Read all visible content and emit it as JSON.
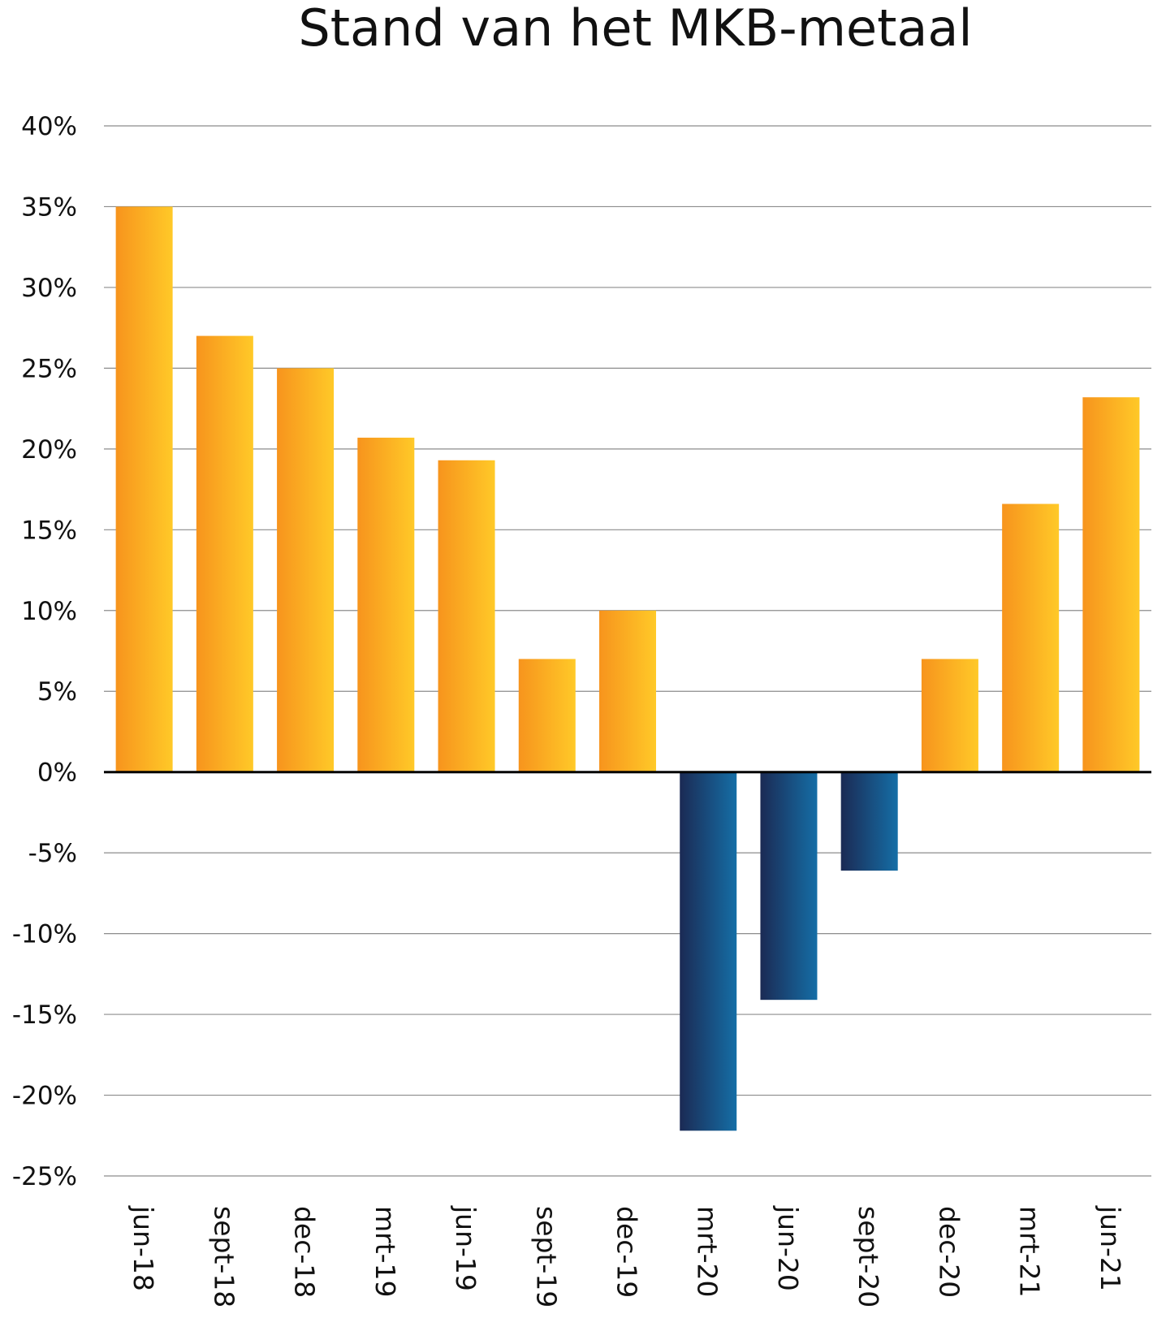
{
  "chart_data": {
    "type": "bar",
    "title": "Stand van het MKB-metaal",
    "xlabel": "",
    "ylabel": "",
    "ylim": [
      -25,
      40
    ],
    "ytick_step": 5,
    "ytick_format": "{v}%",
    "grid": true,
    "categories": [
      "jun-18",
      "sept-18",
      "dec-18",
      "mrt-19",
      "jun-19",
      "sept-19",
      "dec-19",
      "mrt-20",
      "jun-20",
      "sept-20",
      "dec-20",
      "mrt-21",
      "jun-21"
    ],
    "values": [
      35,
      27,
      25,
      20.7,
      19.3,
      7,
      10,
      -22.2,
      -14.1,
      -6.1,
      7,
      16.6,
      23.2
    ],
    "colors": {
      "positive_start": "#f7941d",
      "positive_end": "#ffc928",
      "negative_start": "#1b2a54",
      "negative_end": "#156ea6",
      "gridline": "#8c8c8c",
      "zero_line": "#000000"
    }
  }
}
